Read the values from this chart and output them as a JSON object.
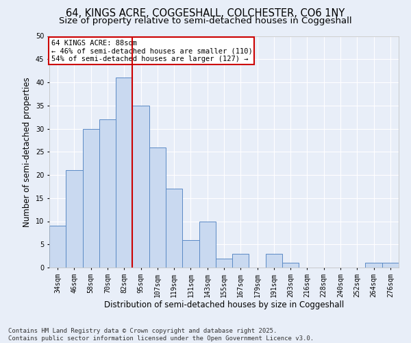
{
  "title": "64, KINGS ACRE, COGGESHALL, COLCHESTER, CO6 1NY",
  "subtitle": "Size of property relative to semi-detached houses in Coggeshall",
  "xlabel": "Distribution of semi-detached houses by size in Coggeshall",
  "ylabel": "Number of semi-detached properties",
  "categories": [
    "34sqm",
    "46sqm",
    "58sqm",
    "70sqm",
    "82sqm",
    "95sqm",
    "107sqm",
    "119sqm",
    "131sqm",
    "143sqm",
    "155sqm",
    "167sqm",
    "179sqm",
    "191sqm",
    "203sqm",
    "216sqm",
    "228sqm",
    "240sqm",
    "252sqm",
    "264sqm",
    "276sqm"
  ],
  "values": [
    9,
    21,
    30,
    32,
    41,
    35,
    26,
    17,
    6,
    10,
    2,
    3,
    0,
    3,
    1,
    0,
    0,
    0,
    0,
    1,
    1
  ],
  "bar_color": "#c9d9f0",
  "bar_edge_color": "#5b8ac5",
  "vline_x": 4.5,
  "vline_color": "#cc0000",
  "annotation_title": "64 KINGS ACRE: 88sqm",
  "annotation_line1": "← 46% of semi-detached houses are smaller (110)",
  "annotation_line2": "54% of semi-detached houses are larger (127) →",
  "annotation_box_color": "#cc0000",
  "ylim": [
    0,
    50
  ],
  "yticks": [
    0,
    5,
    10,
    15,
    20,
    25,
    30,
    35,
    40,
    45,
    50
  ],
  "footer": "Contains HM Land Registry data © Crown copyright and database right 2025.\nContains public sector information licensed under the Open Government Licence v3.0.",
  "fig_bg_color": "#e8eef8",
  "plot_bg_color": "#e8eef8",
  "grid_color": "#ffffff",
  "title_fontsize": 10.5,
  "subtitle_fontsize": 9.5,
  "axis_label_fontsize": 8.5,
  "tick_fontsize": 7,
  "footer_fontsize": 6.5,
  "annot_fontsize": 7.5
}
